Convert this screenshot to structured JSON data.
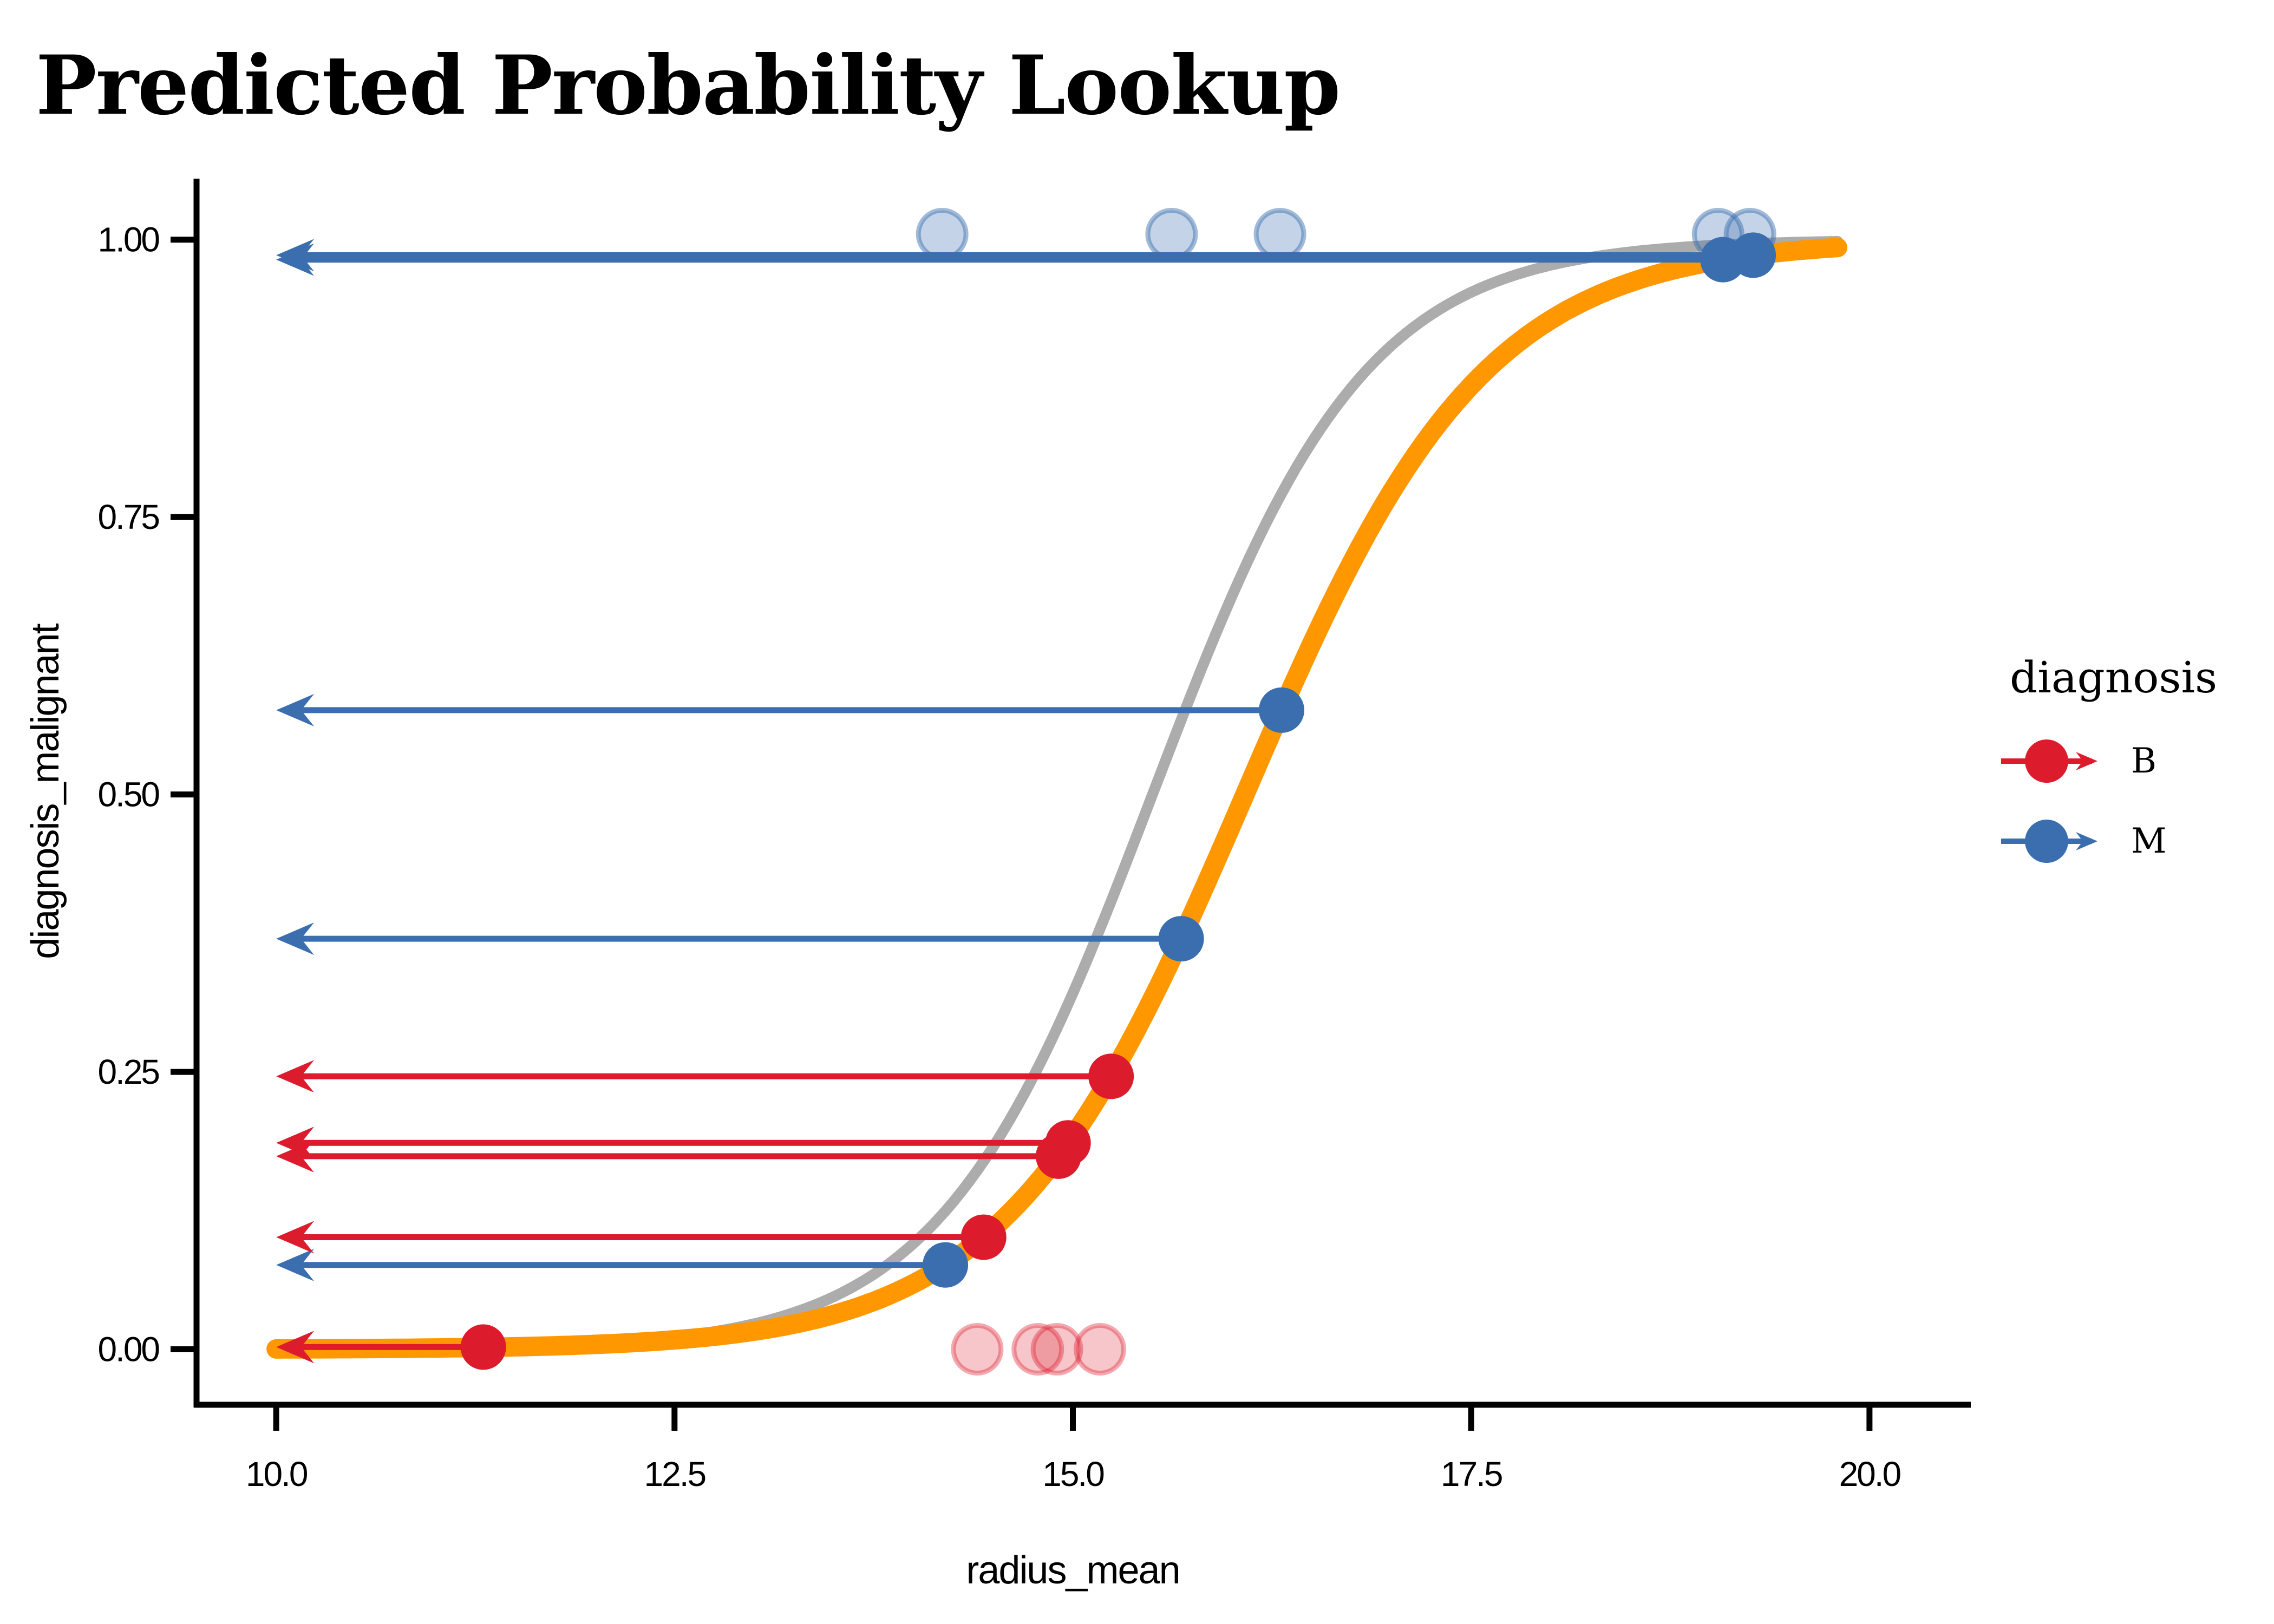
{
  "title": "Predicted Probability Lookup",
  "colors": {
    "benign": "#DC1C2C",
    "malignant": "#3A6EAE",
    "curve_main": "#FF9800",
    "curve_alt": "#ACACAC",
    "axis": "#000000",
    "jitter_benign_fill": "rgba(220,28,44,0.25)",
    "jitter_benign_ring": "rgba(220,28,44,0.38)",
    "jitter_malignant_fill": "rgba(58,110,174,0.30)",
    "jitter_malignant_ring": "rgba(58,110,174,0.48)"
  },
  "legend": {
    "title": "diagnosis",
    "items": [
      {
        "label": "B",
        "color_key": "benign"
      },
      {
        "label": "M",
        "color_key": "malignant"
      }
    ]
  },
  "chart_data": {
    "type": "line",
    "title": "Predicted Probability Lookup",
    "xlabel": "radius_mean",
    "ylabel": "diagnosis_malignant",
    "xlim": [
      9.5,
      20.5
    ],
    "ylim": [
      -0.05,
      1.055
    ],
    "grid": "off",
    "legend_position": "right",
    "x_ticks": {
      "values": [
        10,
        12.5,
        15,
        17.5,
        20
      ],
      "labels": [
        "10.0",
        "12.5",
        "15.0",
        "17.5",
        "20.0"
      ]
    },
    "y_ticks": {
      "values": [
        0,
        0.25,
        0.5,
        0.75,
        1
      ],
      "labels": [
        "0.00",
        "0.25",
        "0.50",
        "0.75",
        "1.00"
      ]
    },
    "curves": [
      {
        "name": "reference-logistic-curve",
        "color_key": "curve_alt",
        "logistic_k": 1.5,
        "logistic_x0": 15.5,
        "x_start": 10,
        "x_end": 19.8,
        "stroke_width": 20
      },
      {
        "name": "lookup-logistic-curve",
        "color_key": "curve_main",
        "logistic_k": 1.33,
        "logistic_x0": 16.08,
        "x_start": 10,
        "x_end": 19.8,
        "stroke_width": 36
      }
    ],
    "lookup_points": [
      {
        "diagnosis": "B",
        "x": 11.3,
        "prob": 0.002
      },
      {
        "diagnosis": "M",
        "x": 14.2,
        "prob": 0.076
      },
      {
        "diagnosis": "B",
        "x": 14.44,
        "prob": 0.101
      },
      {
        "diagnosis": "B",
        "x": 14.91,
        "prob": 0.174
      },
      {
        "diagnosis": "B",
        "x": 14.97,
        "prob": 0.186
      },
      {
        "diagnosis": "B",
        "x": 15.24,
        "prob": 0.246
      },
      {
        "diagnosis": "M",
        "x": 15.68,
        "prob": 0.37
      },
      {
        "diagnosis": "M",
        "x": 16.31,
        "prob": 0.576
      },
      {
        "diagnosis": "M",
        "x": 19.08,
        "prob": 0.982
      },
      {
        "diagnosis": "M",
        "x": 19.27,
        "prob": 0.986
      }
    ],
    "arrows_point_to_x": 10,
    "raw_observations": {
      "malignant_y": 1.005,
      "malignant_x": [
        14.18,
        15.62,
        16.3,
        19.05,
        19.25
      ],
      "benign_y": 0.0,
      "benign_x": [
        14.4,
        14.78,
        14.9,
        15.17
      ]
    }
  }
}
